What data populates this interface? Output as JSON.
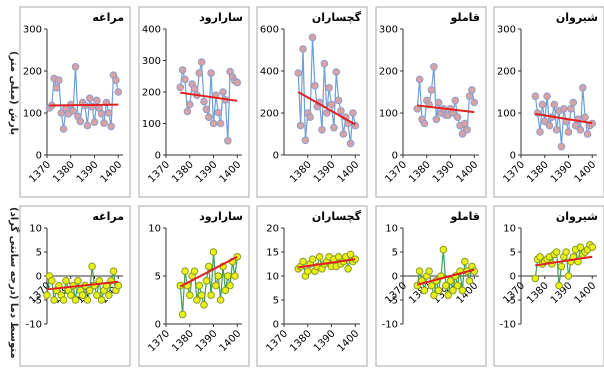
{
  "row_labels": {
    "precip": "بارش (میلی متر)",
    "temp": "متوسط دما (درجه سانتی گراد)"
  },
  "colors": {
    "precip_line": "#6d9ed6",
    "precip_marker_fill": "#d9a3a6",
    "precip_marker_edge": "#8e9cc8",
    "temp_line": "#3aa05a",
    "temp_marker_fill": "#e8f21a",
    "temp_marker_edge": "#8a9a22",
    "trend": "#e02020"
  },
  "chart_data": [
    {
      "type": "line",
      "row": "precip",
      "title": "مراغه",
      "ylim": [
        0,
        300
      ],
      "yticks": [
        0,
        100,
        200,
        300
      ],
      "xticks": [
        1370,
        1380,
        1390,
        1400
      ],
      "x": [
        1371,
        1372,
        1373,
        1374,
        1375,
        1376,
        1377,
        1378,
        1379,
        1380,
        1381,
        1382,
        1383,
        1384,
        1385,
        1386,
        1387,
        1388,
        1389,
        1390,
        1391,
        1392,
        1393,
        1394,
        1395,
        1396,
        1397,
        1398,
        1399,
        1400
      ],
      "values": [
        112,
        118,
        182,
        160,
        178,
        100,
        62,
        110,
        98,
        120,
        105,
        210,
        92,
        80,
        125,
        118,
        70,
        135,
        115,
        78,
        130,
        112,
        98,
        76,
        125,
        100,
        68,
        190,
        178,
        150
      ],
      "trend": [
        118,
        120
      ]
    },
    {
      "type": "line",
      "row": "precip",
      "title": "سارارود",
      "ylim": [
        0,
        400
      ],
      "yticks": [
        0,
        100,
        200,
        300,
        400
      ],
      "xticks": [
        1370,
        1380,
        1390,
        1400
      ],
      "x": [
        1376,
        1377,
        1378,
        1379,
        1380,
        1381,
        1382,
        1383,
        1384,
        1385,
        1386,
        1387,
        1388,
        1389,
        1390,
        1391,
        1392,
        1393,
        1394,
        1395,
        1396,
        1397,
        1398,
        1399,
        1400
      ],
      "values": [
        215,
        270,
        240,
        138,
        160,
        225,
        210,
        190,
        260,
        295,
        170,
        145,
        120,
        260,
        100,
        190,
        135,
        100,
        200,
        175,
        45,
        265,
        248,
        235,
        230
      ],
      "trend": [
        198,
        172
      ]
    },
    {
      "type": "line",
      "row": "precip",
      "title": "گچساران",
      "ylim": [
        0,
        600
      ],
      "yticks": [
        0,
        200,
        400,
        600
      ],
      "xticks": [
        1380,
        1390,
        1400
      ],
      "x": [
        1376,
        1377,
        1378,
        1379,
        1380,
        1381,
        1382,
        1383,
        1384,
        1385,
        1386,
        1387,
        1388,
        1389,
        1390,
        1391,
        1392,
        1393,
        1394,
        1395,
        1396,
        1397,
        1398,
        1399,
        1400
      ],
      "values": [
        390,
        140,
        505,
        70,
        200,
        180,
        560,
        330,
        230,
        250,
        120,
        435,
        200,
        320,
        240,
        130,
        395,
        260,
        210,
        100,
        180,
        150,
        55,
        200,
        140
      ],
      "trend": [
        300,
        145
      ]
    },
    {
      "type": "line",
      "row": "precip",
      "title": "قاملو",
      "ylim": [
        0,
        300
      ],
      "yticks": [
        0,
        100,
        200,
        300
      ],
      "xticks": [
        1370,
        1380,
        1390,
        1400
      ],
      "x": [
        1376,
        1377,
        1378,
        1379,
        1380,
        1381,
        1382,
        1383,
        1384,
        1385,
        1386,
        1387,
        1388,
        1389,
        1390,
        1391,
        1392,
        1393,
        1394,
        1395,
        1396,
        1397,
        1398,
        1399,
        1400
      ],
      "values": [
        110,
        180,
        85,
        75,
        130,
        120,
        155,
        210,
        85,
        125,
        100,
        110,
        95,
        95,
        110,
        100,
        130,
        90,
        70,
        50,
        75,
        60,
        140,
        155,
        125
      ],
      "trend": [
        118,
        102
      ]
    },
    {
      "type": "line",
      "row": "precip",
      "title": "شیروان",
      "ylim": [
        0,
        300
      ],
      "yticks": [
        0,
        100,
        200,
        300
      ],
      "xticks": [
        1370,
        1380,
        1390,
        1400
      ],
      "x": [
        1376,
        1377,
        1378,
        1379,
        1380,
        1381,
        1382,
        1383,
        1384,
        1385,
        1386,
        1387,
        1388,
        1389,
        1390,
        1391,
        1392,
        1393,
        1394,
        1395,
        1396,
        1397,
        1398,
        1399,
        1400
      ],
      "values": [
        140,
        100,
        55,
        120,
        80,
        140,
        70,
        90,
        120,
        60,
        105,
        20,
        110,
        80,
        55,
        110,
        125,
        70,
        85,
        60,
        160,
        90,
        50,
        70,
        75
      ],
      "trend": [
        98,
        76
      ]
    },
    {
      "type": "line",
      "row": "temp",
      "title": "مراغه",
      "ylim": [
        -10,
        10
      ],
      "yticks": [
        -10,
        -5,
        0,
        5,
        10
      ],
      "xticks": [
        1370,
        1380,
        1390,
        1400
      ],
      "x": [
        1370,
        1371,
        1372,
        1373,
        1374,
        1375,
        1376,
        1377,
        1378,
        1379,
        1380,
        1381,
        1382,
        1383,
        1384,
        1385,
        1386,
        1387,
        1388,
        1389,
        1390,
        1391,
        1392,
        1393,
        1394,
        1395,
        1396,
        1397,
        1398,
        1399,
        1400
      ],
      "values": [
        -4,
        0,
        -1,
        -5,
        -3,
        -2,
        -4,
        -5,
        -1,
        -3,
        -4,
        -2,
        -5,
        -1,
        -3,
        -4,
        -2,
        -5,
        -3,
        2,
        -2,
        -4,
        -1,
        -5,
        -3,
        -2,
        -4,
        -1,
        1,
        -3,
        -2
      ],
      "trend": [
        -2.8,
        -1.2
      ]
    },
    {
      "type": "line",
      "row": "temp",
      "title": "سارارود",
      "ylim": [
        0,
        10
      ],
      "yticks": [
        0,
        5,
        10
      ],
      "xticks": [
        1370,
        1380,
        1390,
        1400
      ],
      "x": [
        1376,
        1377,
        1378,
        1379,
        1380,
        1381,
        1382,
        1383,
        1384,
        1385,
        1386,
        1387,
        1388,
        1389,
        1390,
        1391,
        1392,
        1393,
        1394,
        1395,
        1396,
        1397,
        1398,
        1399,
        1400
      ],
      "values": [
        4,
        1,
        5.5,
        4,
        3,
        5,
        5.5,
        2.5,
        4,
        3,
        2,
        4.5,
        6,
        3,
        7.5,
        4,
        5,
        2.5,
        6,
        3.5,
        5,
        4,
        6.5,
        5,
        7
      ],
      "trend": [
        3.9,
        7
      ]
    },
    {
      "type": "line",
      "row": "temp",
      "title": "گچساران",
      "ylim": [
        0,
        20
      ],
      "yticks": [
        0,
        5,
        10,
        15,
        20
      ],
      "xticks": [
        1370,
        1380,
        1390,
        1400
      ],
      "x": [
        1376,
        1377,
        1378,
        1379,
        1380,
        1381,
        1382,
        1383,
        1384,
        1385,
        1386,
        1387,
        1388,
        1389,
        1390,
        1391,
        1392,
        1393,
        1394,
        1395,
        1396,
        1397,
        1398,
        1399,
        1400
      ],
      "values": [
        11.5,
        12,
        13,
        10,
        11,
        12.5,
        13.5,
        11,
        12,
        14,
        11.5,
        12.5,
        13,
        14,
        12,
        13.5,
        12,
        14,
        12.5,
        13,
        14,
        11.5,
        14.5,
        13,
        13.5
      ],
      "trend": [
        11.8,
        13.5
      ]
    },
    {
      "type": "line",
      "row": "temp",
      "title": "قاملو",
      "ylim": [
        -10,
        10
      ],
      "yticks": [
        -10,
        -5,
        0,
        5,
        10
      ],
      "xticks": [
        1370,
        1380,
        1390,
        1400
      ],
      "x": [
        1376,
        1377,
        1378,
        1379,
        1380,
        1381,
        1382,
        1383,
        1384,
        1385,
        1386,
        1387,
        1388,
        1389,
        1390,
        1391,
        1392,
        1393,
        1394,
        1395,
        1396,
        1397,
        1398,
        1399,
        1400
      ],
      "values": [
        -2,
        1,
        -1,
        -3,
        0,
        1,
        -2,
        -4,
        -1,
        -3,
        0,
        5.5,
        -2,
        -4,
        -1,
        -3,
        0,
        -2,
        1,
        -3,
        3,
        1,
        -1,
        2,
        1
      ],
      "trend": [
        -1.8,
        1.3
      ]
    },
    {
      "type": "line",
      "row": "temp",
      "title": "شیروان",
      "ylim": [
        -10,
        10
      ],
      "yticks": [
        -10,
        -5,
        0,
        5,
        10
      ],
      "xticks": [
        1370,
        1380,
        1390,
        1400
      ],
      "x": [
        1376,
        1377,
        1378,
        1379,
        1380,
        1381,
        1382,
        1383,
        1384,
        1385,
        1386,
        1387,
        1388,
        1389,
        1390,
        1391,
        1392,
        1393,
        1394,
        1395,
        1396,
        1397,
        1398,
        1399,
        1400
      ],
      "values": [
        -0.5,
        3.5,
        4,
        2.5,
        3,
        3.5,
        4,
        2.5,
        4.5,
        5,
        -2,
        2,
        4,
        5,
        0,
        3,
        4,
        5.5,
        3,
        6,
        4.5,
        5,
        5.5,
        6.5,
        6
      ],
      "trend": [
        2.2,
        4
      ]
    }
  ]
}
